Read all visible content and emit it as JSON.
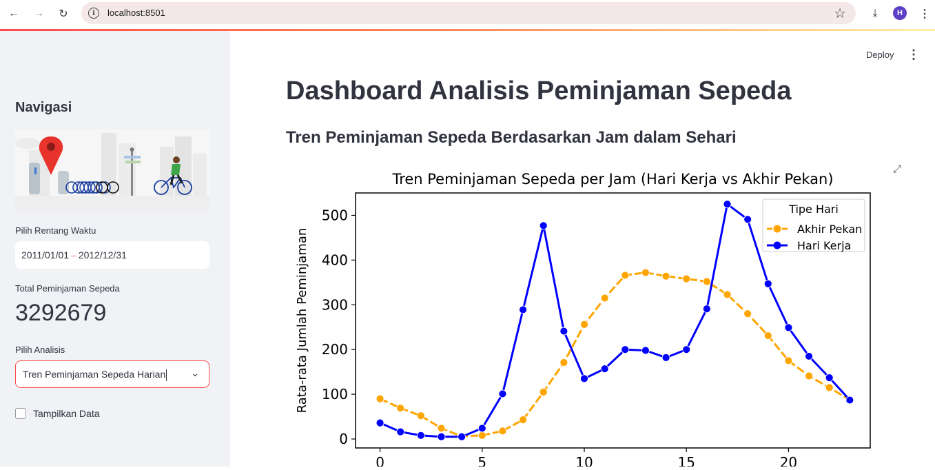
{
  "browser": {
    "url": "localhost:8501",
    "profile_initial": "H",
    "icons": [
      "back-icon",
      "forward-icon",
      "reload-icon",
      "info-icon",
      "star-icon",
      "download-icon",
      "more-icon"
    ]
  },
  "app": {
    "toolbar": {
      "deploy_label": "Deploy"
    },
    "title": "Dashboard Analisis Peminjaman Sepeda",
    "subtitle": "Tren Peminjaman Sepeda Berdasarkan Jam dalam Sehari"
  },
  "sidebar": {
    "nav_title": "Navigasi",
    "date_label": "Pilih Rentang Waktu",
    "date_start": "2011/01/01",
    "date_sep": "–",
    "date_end": "2012/12/31",
    "total_label": "Total Peminjaman Sepeda",
    "total_value": "3292679",
    "analysis_label": "Pilih Analisis",
    "analysis_value": "Tren Peminjaman Sepeda Harian",
    "show_data_label": "Tampilkan Data"
  },
  "colors": {
    "accent": "#ff4b4b",
    "weekend": "#ffa500",
    "weekday": "#0000ff"
  },
  "chart_data": {
    "type": "line",
    "title": "Tren Peminjaman Sepeda per Jam (Hari Kerja vs Akhir Pekan)",
    "xlabel": "",
    "ylabel": "Rata-rata Jumlah Peminjaman",
    "x": [
      0,
      1,
      2,
      3,
      4,
      5,
      6,
      7,
      8,
      9,
      10,
      11,
      12,
      13,
      14,
      15,
      16,
      17,
      18,
      19,
      20,
      21,
      22,
      23
    ],
    "xticks": [
      0,
      5,
      10,
      15,
      20
    ],
    "yticks": [
      0,
      100,
      200,
      300,
      400,
      500
    ],
    "ylim": [
      -20,
      550
    ],
    "xlim": [
      -1.2,
      24
    ],
    "legend": {
      "title": "Tipe Hari",
      "placement": "top-right"
    },
    "series": [
      {
        "name": "Akhir Pekan",
        "color": "#ffa500",
        "values": [
          90,
          69,
          52,
          24,
          6,
          8,
          18,
          43,
          105,
          171,
          256,
          315,
          366,
          372,
          364,
          358,
          352,
          323,
          280,
          231,
          175,
          141,
          115,
          87
        ]
      },
      {
        "name": "Hari Kerja",
        "color": "#0000ff",
        "values": [
          36,
          16,
          8,
          5,
          5,
          24,
          101,
          289,
          477,
          241,
          135,
          157,
          200,
          198,
          182,
          200,
          291,
          525,
          491,
          347,
          249,
          185,
          137,
          87
        ]
      }
    ]
  }
}
